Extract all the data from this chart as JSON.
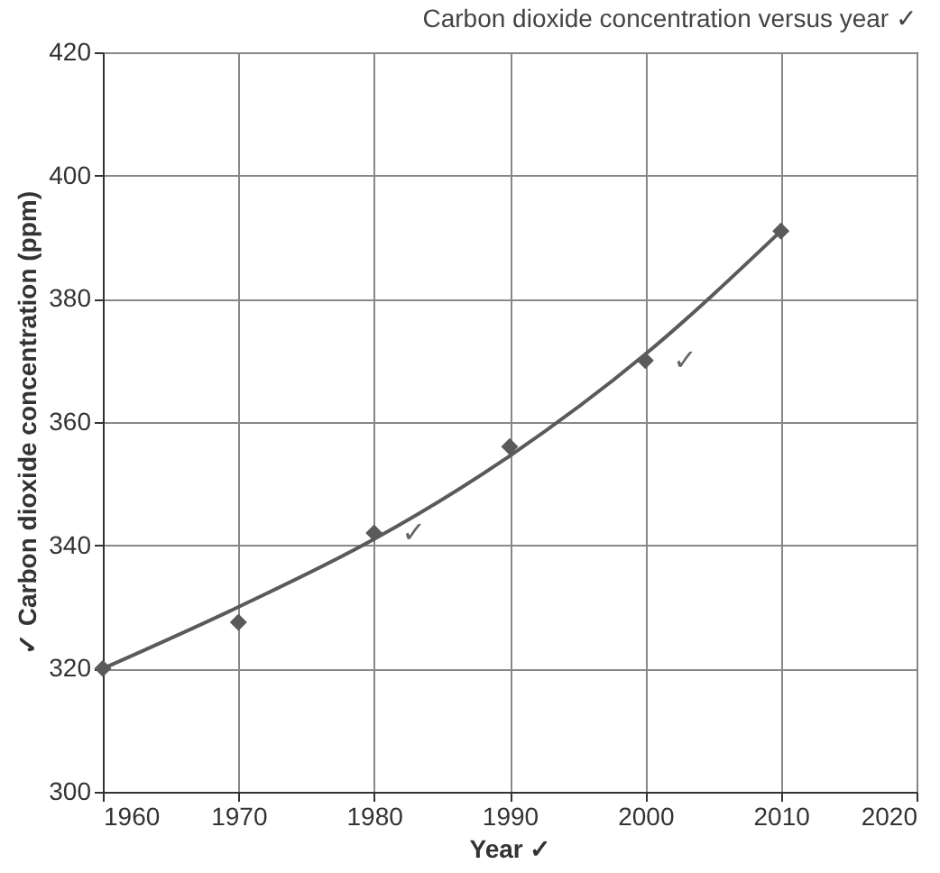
{
  "chart_data": {
    "type": "scatter",
    "title": "Carbon dioxide concentration versus year ✓",
    "xlabel": "Year ✓",
    "ylabel": "✓ Carbon dioxide concentration (ppm)",
    "xlim": [
      1960,
      2020
    ],
    "xticks": [
      1960,
      1970,
      1980,
      1990,
      2000,
      2010,
      2020
    ],
    "ylim": [
      300,
      420
    ],
    "yticks": [
      300,
      320,
      340,
      360,
      380,
      400,
      420
    ],
    "grid": true,
    "marker": "diamond",
    "series": [
      {
        "color": "#5a5a5a",
        "x": [
          1960,
          1970,
          1980,
          1990,
          2000,
          2010
        ],
        "values": [
          320,
          327.5,
          342,
          356,
          370,
          391
        ]
      },
      {
        "type": "line",
        "color": "#5a5a5a",
        "line_style": "solid",
        "marker": "none",
        "x": [
          1960,
          1970,
          1980,
          1990,
          2000,
          2010
        ],
        "values": [
          320,
          330,
          341,
          354.5,
          371,
          391
        ]
      }
    ],
    "annotations": [
      {
        "text": "✓",
        "x": 1980,
        "y": 342
      },
      {
        "text": "✓",
        "x": 2000,
        "y": 370
      }
    ]
  }
}
